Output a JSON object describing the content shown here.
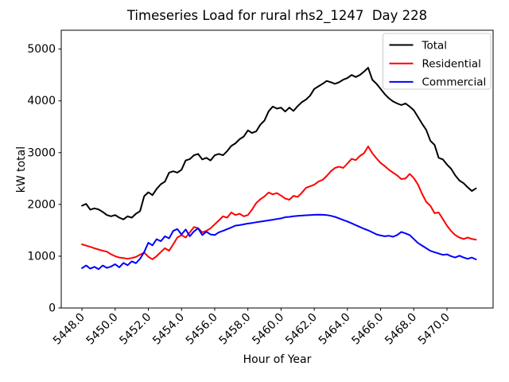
{
  "figure": {
    "background": "#ffffff",
    "border_color": "#000000",
    "legend_border_color": "#cccccc"
  },
  "chart_data": {
    "type": "line",
    "title": "Timeseries Load for rural rhs2_1247  Day 228",
    "xlabel": "Hour of Year",
    "ylabel": "kW total",
    "grid": false,
    "legend_position": "upper right",
    "xlim": [
      5446.75,
      5472.78
    ],
    "ylim": [
      0,
      5364
    ],
    "xticks": [
      5448,
      5450,
      5452,
      5454,
      5456,
      5458,
      5460,
      5462,
      5464,
      5466,
      5468,
      5470
    ],
    "xtick_labels": [
      "5448.0",
      "5450.0",
      "5452.0",
      "5454.0",
      "5456.0",
      "5458.0",
      "5460.0",
      "5462.0",
      "5464.0",
      "5466.0",
      "5468.0",
      "5470.0"
    ],
    "yticks": [
      0,
      1000,
      2000,
      3000,
      4000,
      5000
    ],
    "ytick_labels": [
      "0",
      "1000",
      "2000",
      "3000",
      "4000",
      "5000"
    ],
    "x": [
      5448.0,
      5448.25,
      5448.5,
      5448.75,
      5449.0,
      5449.25,
      5449.5,
      5449.75,
      5450.0,
      5450.25,
      5450.5,
      5450.75,
      5451.0,
      5451.25,
      5451.5,
      5451.75,
      5452.0,
      5452.25,
      5452.5,
      5452.75,
      5453.0,
      5453.25,
      5453.5,
      5453.75,
      5454.0,
      5454.25,
      5454.5,
      5454.75,
      5455.0,
      5455.25,
      5455.5,
      5455.75,
      5456.0,
      5456.25,
      5456.5,
      5456.75,
      5457.0,
      5457.25,
      5457.5,
      5457.75,
      5458.0,
      5458.25,
      5458.5,
      5458.75,
      5459.0,
      5459.25,
      5459.5,
      5459.75,
      5460.0,
      5460.25,
      5460.5,
      5460.75,
      5461.0,
      5461.25,
      5461.5,
      5461.75,
      5462.0,
      5462.25,
      5462.5,
      5462.75,
      5463.0,
      5463.25,
      5463.5,
      5463.75,
      5464.0,
      5464.25,
      5464.5,
      5464.75,
      5465.0,
      5465.25,
      5465.5,
      5465.75,
      5466.0,
      5466.25,
      5466.5,
      5466.75,
      5467.0,
      5467.25,
      5467.5,
      5467.75,
      5468.0,
      5468.25,
      5468.5,
      5468.75,
      5469.0,
      5469.25,
      5469.5,
      5469.75,
      5470.0,
      5470.25,
      5470.5,
      5470.75,
      5471.0,
      5471.25,
      5471.5,
      5471.75
    ],
    "series": [
      {
        "name": "Total",
        "color": "#000000",
        "values": [
          1975,
          2010,
          1900,
          1925,
          1905,
          1855,
          1795,
          1770,
          1795,
          1745,
          1710,
          1770,
          1745,
          1820,
          1870,
          2160,
          2235,
          2180,
          2300,
          2390,
          2440,
          2615,
          2640,
          2615,
          2670,
          2850,
          2875,
          2950,
          2975,
          2870,
          2900,
          2850,
          2950,
          2975,
          2950,
          3030,
          3130,
          3180,
          3260,
          3310,
          3430,
          3380,
          3410,
          3540,
          3620,
          3800,
          3890,
          3850,
          3870,
          3795,
          3870,
          3805,
          3900,
          3975,
          4025,
          4100,
          4230,
          4280,
          4330,
          4385,
          4360,
          4330,
          4360,
          4410,
          4440,
          4500,
          4460,
          4500,
          4565,
          4640,
          4410,
          4330,
          4230,
          4130,
          4050,
          3990,
          3950,
          3920,
          3950,
          3890,
          3820,
          3690,
          3560,
          3440,
          3230,
          3150,
          2900,
          2870,
          2770,
          2690,
          2560,
          2460,
          2410,
          2330,
          2260,
          2310
        ]
      },
      {
        "name": "Residential",
        "color": "#ff0000",
        "values": [
          1230,
          1205,
          1180,
          1155,
          1130,
          1105,
          1088,
          1037,
          1000,
          975,
          965,
          950,
          965,
          985,
          1030,
          1070,
          990,
          940,
          1000,
          1080,
          1155,
          1105,
          1230,
          1360,
          1410,
          1360,
          1460,
          1565,
          1540,
          1462,
          1490,
          1540,
          1615,
          1690,
          1770,
          1745,
          1845,
          1795,
          1820,
          1770,
          1795,
          1900,
          2025,
          2100,
          2155,
          2230,
          2195,
          2220,
          2170,
          2115,
          2090,
          2165,
          2145,
          2225,
          2320,
          2350,
          2380,
          2440,
          2475,
          2550,
          2640,
          2705,
          2730,
          2705,
          2790,
          2880,
          2855,
          2935,
          2990,
          3120,
          2990,
          2890,
          2800,
          2740,
          2670,
          2615,
          2560,
          2490,
          2500,
          2590,
          2510,
          2385,
          2205,
          2050,
          1975,
          1830,
          1845,
          1718,
          1590,
          1487,
          1410,
          1360,
          1333,
          1360,
          1333,
          1320
        ]
      },
      {
        "name": "Commercial",
        "color": "#0000ff",
        "values": [
          770,
          820,
          760,
          795,
          750,
          820,
          775,
          800,
          845,
          785,
          870,
          825,
          900,
          865,
          950,
          1080,
          1260,
          1210,
          1330,
          1290,
          1385,
          1345,
          1490,
          1525,
          1420,
          1515,
          1385,
          1480,
          1540,
          1410,
          1472,
          1420,
          1410,
          1462,
          1490,
          1523,
          1555,
          1590,
          1600,
          1615,
          1630,
          1641,
          1655,
          1667,
          1680,
          1692,
          1705,
          1718,
          1730,
          1754,
          1760,
          1770,
          1778,
          1785,
          1790,
          1795,
          1800,
          1802,
          1800,
          1795,
          1780,
          1760,
          1730,
          1700,
          1670,
          1635,
          1600,
          1565,
          1530,
          1500,
          1462,
          1421,
          1400,
          1385,
          1395,
          1375,
          1410,
          1470,
          1440,
          1410,
          1333,
          1256,
          1205,
          1155,
          1103,
          1077,
          1051,
          1026,
          1036,
          1000,
          975,
          1010,
          975,
          950,
          975,
          938
        ]
      }
    ]
  }
}
